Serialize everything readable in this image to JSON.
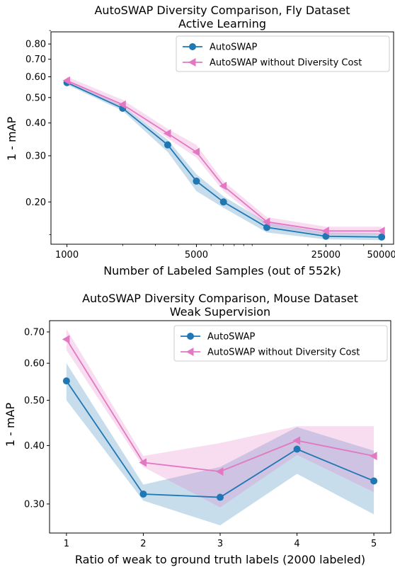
{
  "chart_data": [
    {
      "type": "line",
      "title": "AutoSWAP Diversity Comparison, Fly Dataset",
      "subtitle": "Active Learning",
      "xlabel": "Number of Labeled Samples (out of 552k)",
      "ylabel": "1 - mAP",
      "xscale": "log",
      "yscale": "log",
      "xlim": [
        820,
        58000
      ],
      "ylim": [
        0.138,
        0.89
      ],
      "xticks": [
        1000,
        5000,
        25000,
        50000
      ],
      "xtick_labels": [
        "1000",
        "5000",
        "25000",
        "50000"
      ],
      "yticks": [
        0.2,
        0.3,
        0.4,
        0.5,
        0.6,
        0.7,
        0.8
      ],
      "ytick_labels": [
        "0.20",
        "0.30",
        "0.40",
        "0.50",
        "0.60",
        "0.70",
        "0.80"
      ],
      "grid": false,
      "legend": "top-right",
      "series": [
        {
          "name": "AutoSWAP",
          "color": "#1f77b4",
          "marker": "circle",
          "x": [
            1000,
            2000,
            3500,
            5000,
            7000,
            12000,
            25000,
            50000
          ],
          "y": [
            0.57,
            0.455,
            0.33,
            0.24,
            0.2,
            0.16,
            0.148,
            0.147
          ],
          "lower": [
            0.56,
            0.445,
            0.31,
            0.22,
            0.19,
            0.153,
            0.144,
            0.143
          ],
          "upper": [
            0.58,
            0.465,
            0.345,
            0.255,
            0.21,
            0.167,
            0.153,
            0.152
          ]
        },
        {
          "name": "AutoSWAP without Diversity Cost",
          "color": "#e377c2",
          "marker": "triangle-left",
          "x": [
            1000,
            2000,
            3500,
            5000,
            7000,
            12000,
            25000,
            50000
          ],
          "y": [
            0.58,
            0.47,
            0.365,
            0.31,
            0.23,
            0.168,
            0.155,
            0.155
          ],
          "lower": [
            0.565,
            0.46,
            0.35,
            0.295,
            0.22,
            0.162,
            0.15,
            0.15
          ],
          "upper": [
            0.6,
            0.49,
            0.38,
            0.33,
            0.24,
            0.175,
            0.161,
            0.161
          ]
        }
      ]
    },
    {
      "type": "line",
      "title": "AutoSWAP Diversity Comparison, Mouse Dataset",
      "subtitle": "Weak Supervision",
      "xlabel": "Ratio of weak to ground truth labels (2000 labeled)",
      "ylabel": "1 - mAP",
      "yscale": "log",
      "xlim": [
        0.78,
        5.22
      ],
      "ylim": [
        0.26,
        0.74
      ],
      "xticks": [
        1,
        2,
        3,
        4,
        5
      ],
      "xtick_labels": [
        "1",
        "2",
        "3",
        "4",
        "5"
      ],
      "yticks": [
        0.3,
        0.4,
        0.5,
        0.6,
        0.7
      ],
      "ytick_labels": [
        "0.30",
        "0.40",
        "0.50",
        "0.60",
        "0.70"
      ],
      "grid": false,
      "legend": "top-right",
      "series": [
        {
          "name": "AutoSWAP",
          "color": "#1f77b4",
          "marker": "circle",
          "x": [
            1,
            2,
            3,
            4,
            5
          ],
          "y": [
            0.55,
            0.315,
            0.31,
            0.393,
            0.336
          ],
          "lower": [
            0.5,
            0.305,
            0.27,
            0.348,
            0.285
          ],
          "upper": [
            0.6,
            0.33,
            0.36,
            0.438,
            0.39
          ]
        },
        {
          "name": "AutoSWAP without Diversity Cost",
          "color": "#e377c2",
          "marker": "triangle-left",
          "x": [
            1,
            2,
            3,
            4,
            5
          ],
          "y": [
            0.675,
            0.368,
            0.352,
            0.41,
            0.38
          ],
          "lower": [
            0.64,
            0.36,
            0.295,
            0.382,
            0.318
          ],
          "upper": [
            0.71,
            0.38,
            0.405,
            0.44,
            0.44
          ]
        }
      ]
    }
  ]
}
